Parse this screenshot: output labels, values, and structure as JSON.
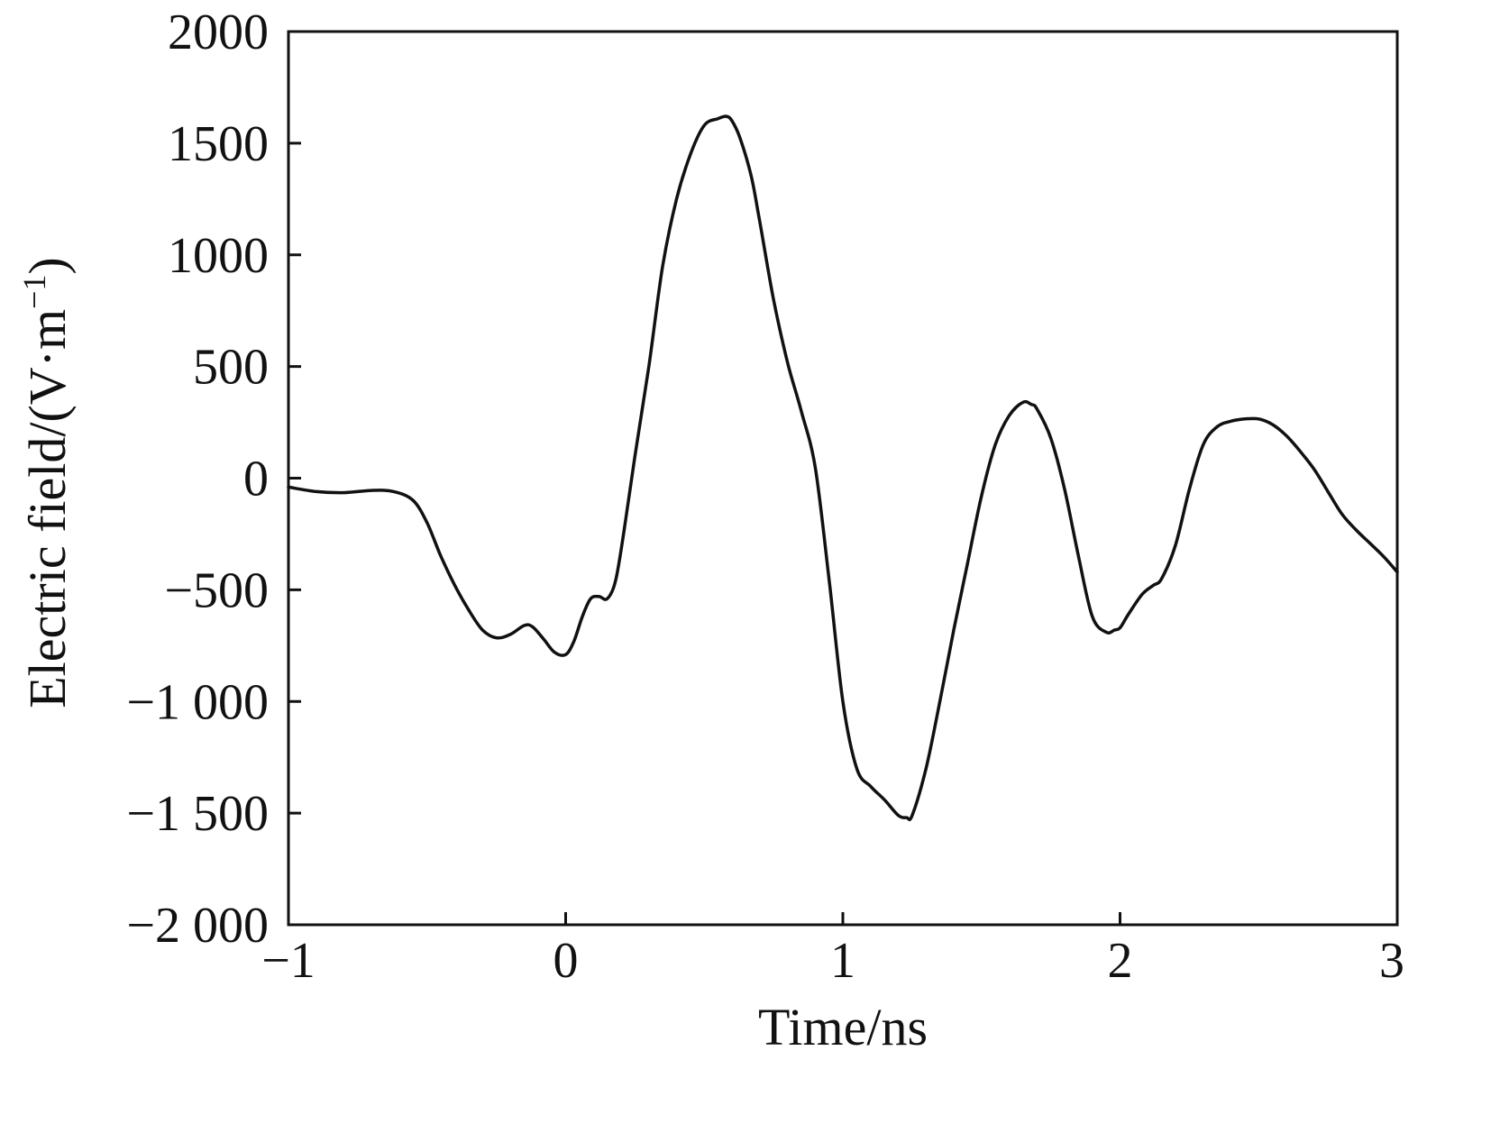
{
  "chart_data": {
    "type": "line",
    "xlabel": "Time/ns",
    "ylabel": "Electric field/(V·m",
    "ylabel_sup": "−1",
    "ylabel_close": ")",
    "xlim": [
      -1,
      3
    ],
    "ylim": [
      -2000,
      2000
    ],
    "grid": false,
    "x_ticks": [
      {
        "value": -1,
        "label": "−1"
      },
      {
        "value": 0,
        "label": "0"
      },
      {
        "value": 1,
        "label": "1"
      },
      {
        "value": 2,
        "label": "2"
      },
      {
        "value": 3,
        "label": "3"
      }
    ],
    "y_ticks": [
      {
        "value": 2000,
        "label": "2000"
      },
      {
        "value": 1500,
        "label": "1500"
      },
      {
        "value": 1000,
        "label": "1000"
      },
      {
        "value": 500,
        "label": "500"
      },
      {
        "value": 0,
        "label": "0"
      },
      {
        "value": -500,
        "label": "−500"
      },
      {
        "value": -1000,
        "label": "−1 000"
      },
      {
        "value": -1500,
        "label": "−1 500"
      },
      {
        "value": -2000,
        "label": "−2 000"
      }
    ],
    "series": [
      {
        "color": "#111111",
        "x": [
          -1.0,
          -0.9,
          -0.8,
          -0.7,
          -0.62,
          -0.55,
          -0.5,
          -0.45,
          -0.4,
          -0.35,
          -0.3,
          -0.25,
          -0.2,
          -0.15,
          -0.12,
          -0.08,
          -0.04,
          0.0,
          0.03,
          0.06,
          0.09,
          0.12,
          0.15,
          0.18,
          0.21,
          0.25,
          0.3,
          0.35,
          0.4,
          0.45,
          0.5,
          0.55,
          0.58,
          0.6,
          0.63,
          0.67,
          0.7,
          0.75,
          0.8,
          0.85,
          0.9,
          0.95,
          1.0,
          1.05,
          1.1,
          1.15,
          1.2,
          1.23,
          1.25,
          1.3,
          1.35,
          1.4,
          1.45,
          1.5,
          1.55,
          1.6,
          1.65,
          1.68,
          1.7,
          1.75,
          1.8,
          1.85,
          1.9,
          1.95,
          1.98,
          2.0,
          2.03,
          2.08,
          2.12,
          2.15,
          2.2,
          2.25,
          2.3,
          2.35,
          2.4,
          2.45,
          2.5,
          2.55,
          2.6,
          2.65,
          2.7,
          2.75,
          2.8,
          2.85,
          2.9,
          2.95,
          3.0
        ],
        "values": [
          -40,
          -60,
          -65,
          -55,
          -60,
          -100,
          -200,
          -350,
          -480,
          -590,
          -680,
          -715,
          -700,
          -660,
          -665,
          -720,
          -780,
          -790,
          -730,
          -620,
          -540,
          -530,
          -540,
          -460,
          -240,
          100,
          500,
          950,
          1250,
          1450,
          1580,
          1610,
          1620,
          1600,
          1520,
          1350,
          1150,
          800,
          520,
          300,
          50,
          -450,
          -1000,
          -1300,
          -1380,
          -1440,
          -1510,
          -1520,
          -1510,
          -1300,
          -1000,
          -680,
          -380,
          -80,
          150,
          280,
          340,
          330,
          310,
          180,
          -50,
          -350,
          -620,
          -690,
          -680,
          -670,
          -610,
          -520,
          -480,
          -450,
          -300,
          -50,
          150,
          230,
          255,
          265,
          265,
          240,
          190,
          120,
          40,
          -60,
          -160,
          -230,
          -290,
          -350,
          -420
        ]
      }
    ]
  }
}
